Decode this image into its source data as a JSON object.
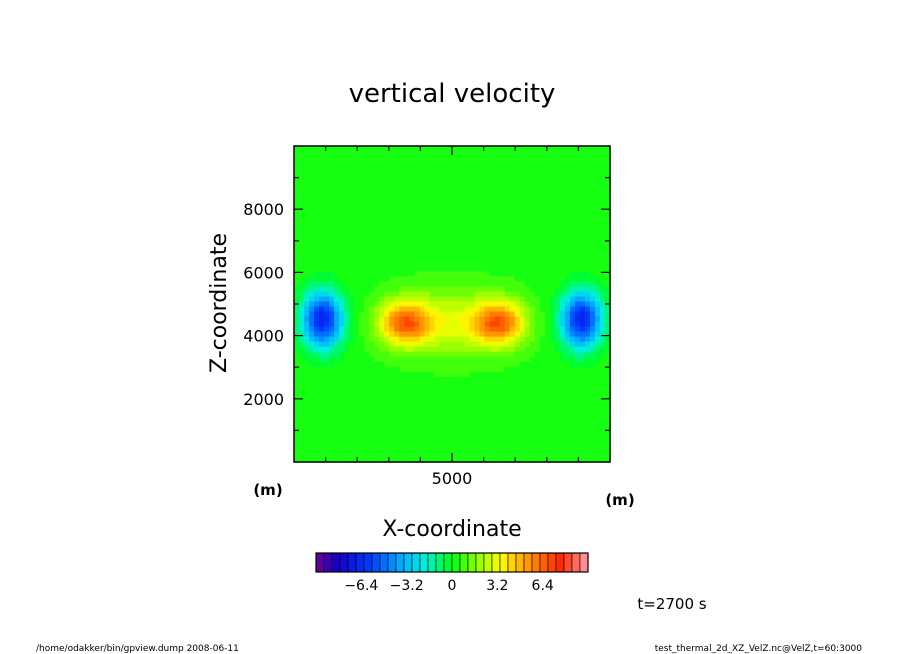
{
  "chart_data": {
    "type": "heatmap",
    "title": "vertical velocity",
    "xlabel": "X-coordinate",
    "ylabel": "Z-coordinate",
    "x_unit": "(m)",
    "y_unit": "(m)",
    "xlim": [
      0,
      10000
    ],
    "ylim": [
      0,
      10000
    ],
    "x_ticks": [
      5000
    ],
    "y_ticks": [
      2000,
      4000,
      6000,
      8000
    ],
    "features": [
      {
        "kind": "updraft",
        "x": 3500,
        "z": 4400,
        "value": 5.5,
        "sx": 800,
        "sz": 700
      },
      {
        "kind": "updraft",
        "x": 6500,
        "z": 4400,
        "value": 5.5,
        "sx": 800,
        "sz": 700
      },
      {
        "kind": "updraft",
        "x": 5000,
        "z": 4400,
        "value": 2.5,
        "sx": 1600,
        "sz": 1000
      },
      {
        "kind": "downdraft",
        "x": 900,
        "z": 4500,
        "value": -7.0,
        "sx": 650,
        "sz": 900
      },
      {
        "kind": "downdraft",
        "x": 9100,
        "z": 4500,
        "value": -7.0,
        "sx": 650,
        "sz": 900
      }
    ],
    "colorbar": {
      "min": -9.6,
      "max": 9.6,
      "tick_values": [
        -6.4,
        -3.2,
        0,
        3.2,
        6.4
      ],
      "tick_labels": [
        "−6.4",
        "−3.2",
        "0",
        "3.2",
        "6.4"
      ]
    }
  },
  "footer": {
    "time_label": "t=2700 s",
    "left_note": "/home/odakker/bin/gpview.dump  2008-06-11",
    "right_note": "test_thermal_2d_XZ_VelZ.nc@VelZ,t=60:3000"
  }
}
